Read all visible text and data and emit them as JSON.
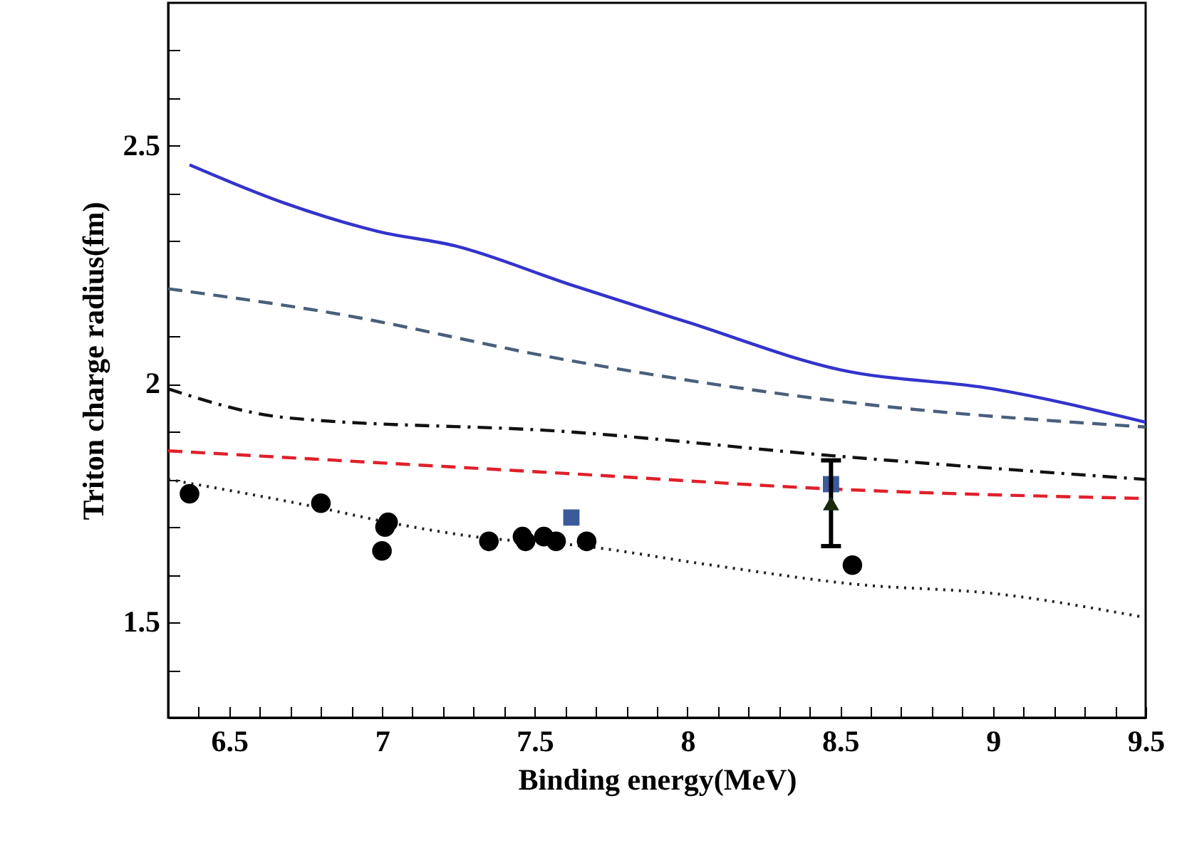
{
  "chart_data": {
    "type": "line",
    "xlabel": "Binding energy(MeV)",
    "ylabel": "Triton charge radius(fm)",
    "xlim": [
      6.3,
      9.5
    ],
    "ylim": [
      1.3,
      2.8
    ],
    "xticks": [
      {
        "value": 6.4,
        "label": null
      },
      6.5,
      {
        "value": 6.6,
        "label": null
      },
      {
        "value": 6.7,
        "label": null
      },
      {
        "value": 6.8,
        "label": null
      },
      {
        "value": 6.9,
        "label": null
      },
      7,
      {
        "value": 7.1,
        "label": null
      },
      {
        "value": 7.2,
        "label": null
      },
      {
        "value": 7.3,
        "label": null
      },
      {
        "value": 7.4,
        "label": null
      },
      7.5,
      {
        "value": 7.6,
        "label": null
      },
      {
        "value": 7.7,
        "label": null
      },
      {
        "value": 7.8,
        "label": null
      },
      {
        "value": 7.9,
        "label": null
      },
      8,
      {
        "value": 8.1,
        "label": null
      },
      {
        "value": 8.2,
        "label": null
      },
      {
        "value": 8.3,
        "label": null
      },
      {
        "value": 8.4,
        "label": null
      },
      8.5,
      {
        "value": 8.6,
        "label": null
      },
      {
        "value": 8.7,
        "label": null
      },
      {
        "value": 8.8,
        "label": null
      },
      {
        "value": 8.9,
        "label": null
      },
      9,
      {
        "value": 9.1,
        "label": null
      },
      {
        "value": 9.2,
        "label": null
      },
      {
        "value": 9.3,
        "label": null
      },
      {
        "value": 9.4,
        "label": null
      },
      9.5
    ],
    "yticks": [
      {
        "value": 1.4,
        "label": null
      },
      1.5,
      {
        "value": 1.6,
        "label": null
      },
      {
        "value": 1.7,
        "label": null
      },
      {
        "value": 1.8,
        "label": null
      },
      {
        "value": 1.9,
        "label": null
      },
      2,
      {
        "value": 2.1,
        "label": null
      },
      {
        "value": 2.2,
        "label": null
      },
      {
        "value": 2.3,
        "label": null
      },
      {
        "value": 2.4,
        "label": null
      },
      2.5,
      {
        "value": 2.6,
        "label": null
      },
      {
        "value": 2.7,
        "label": null
      }
    ],
    "grid": false,
    "series": [
      {
        "color": "#3333cc",
        "line_style": "solid",
        "x": [
          6.37,
          6.68,
          6.99,
          7.24,
          7.61,
          8.0,
          8.5,
          9.0,
          9.5
        ],
        "values": [
          2.46,
          2.38,
          2.32,
          2.29,
          2.21,
          2.13,
          2.03,
          1.99,
          1.92
        ]
      },
      {
        "color": "#4a5f7a",
        "line_style": "dashed",
        "x": [
          6.3,
          6.83,
          7.61,
          8.55,
          9.5
        ],
        "values": [
          2.2,
          2.15,
          2.05,
          1.96,
          1.91
        ]
      },
      {
        "color": "#111111",
        "line_style": "dashdot",
        "x": [
          6.3,
          6.68,
          7.61,
          8.47,
          9.5
        ],
        "values": [
          1.99,
          1.93,
          1.9,
          1.85,
          1.8
        ]
      },
      {
        "color": "#e0202a",
        "line_style": "dashed",
        "x": [
          6.3,
          7.67,
          8.47,
          9.5
        ],
        "values": [
          1.86,
          1.81,
          1.78,
          1.76
        ]
      },
      {
        "color": "#222222",
        "line_style": "dotted",
        "x": [
          6.3,
          6.8,
          7.02,
          7.3,
          7.66,
          8.08,
          8.55,
          9.01,
          9.5
        ],
        "values": [
          1.8,
          1.74,
          1.71,
          1.68,
          1.66,
          1.62,
          1.58,
          1.56,
          1.51
        ]
      },
      {
        "type": "scatter",
        "color": "#000000",
        "marker": "circle",
        "x": [
          6.37,
          6.8,
          7.02,
          7.01,
          7.0,
          7.35,
          7.46,
          7.47,
          7.53,
          7.57,
          7.67,
          8.54
        ],
        "values": [
          1.77,
          1.75,
          1.71,
          1.7,
          1.65,
          1.67,
          1.68,
          1.67,
          1.68,
          1.67,
          1.67,
          1.62
        ]
      },
      {
        "type": "scatter",
        "color": "#3a5a9a",
        "marker": "square",
        "x": [
          7.62,
          8.47
        ],
        "values": [
          1.72,
          1.79
        ]
      },
      {
        "type": "scatter",
        "color": "#1a2a10",
        "marker": "triangle",
        "x": [
          8.47
        ],
        "values": [
          1.75
        ],
        "errors": [
          0.09
        ]
      }
    ]
  }
}
